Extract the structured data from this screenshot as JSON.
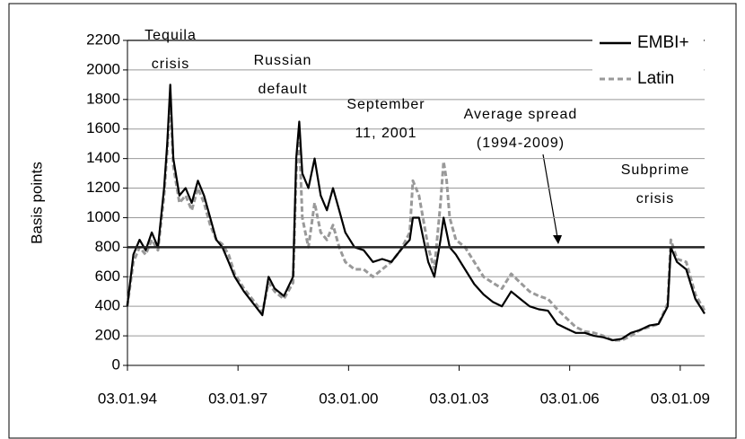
{
  "chart_data": {
    "type": "line",
    "ylabel": "Basis points",
    "ylim": [
      0,
      2200
    ],
    "yticks": [
      0,
      200,
      400,
      600,
      800,
      1000,
      1200,
      1400,
      1600,
      1800,
      2000,
      2200
    ],
    "xlim": [
      "1994-01-03",
      "2009-09"
    ],
    "xticks": [
      {
        "value": "1994-01-03",
        "label": "03.01.94"
      },
      {
        "value": "1997-01-03",
        "label": "03.01.97"
      },
      {
        "value": "2000-01-03",
        "label": "03.01.00"
      },
      {
        "value": "2003-01-03",
        "label": "03.01.03"
      },
      {
        "value": "2006-01-03",
        "label": "03.01.06"
      },
      {
        "value": "2009-01-03",
        "label": "03.01.09"
      }
    ],
    "grid": true,
    "legend": "upper right",
    "reference_line": 800,
    "annotations": [
      {
        "lines": [
          "Tequila",
          "crisis"
        ]
      },
      {
        "lines": [
          "Russian",
          "default"
        ]
      },
      {
        "lines": [
          "September",
          "11, 2001"
        ]
      },
      {
        "lines": [
          "Average spread",
          "(1994-2009)"
        ]
      },
      {
        "lines": [
          "Subprime",
          "crisis"
        ]
      }
    ],
    "x": [
      "1994-01",
      "1994-03",
      "1994-05",
      "1994-07",
      "1994-09",
      "1994-11",
      "1995-01",
      "1995-02",
      "1995-03",
      "1995-04",
      "1995-06",
      "1995-08",
      "1995-10",
      "1995-12",
      "1996-02",
      "1996-04",
      "1996-06",
      "1996-08",
      "1996-10",
      "1996-12",
      "1997-03",
      "1997-06",
      "1997-09",
      "1997-11",
      "1998-01",
      "1998-04",
      "1998-07",
      "1998-08",
      "1998-09",
      "1998-10",
      "1998-12",
      "1999-02",
      "1999-04",
      "1999-06",
      "1999-08",
      "1999-10",
      "1999-12",
      "2000-03",
      "2000-06",
      "2000-09",
      "2000-12",
      "2001-03",
      "2001-06",
      "2001-09",
      "2001-10",
      "2001-12",
      "2002-03",
      "2002-05",
      "2002-07",
      "2002-08",
      "2002-09",
      "2002-10",
      "2002-12",
      "2003-03",
      "2003-06",
      "2003-09",
      "2003-12",
      "2004-03",
      "2004-06",
      "2004-09",
      "2004-12",
      "2005-03",
      "2005-06",
      "2005-09",
      "2005-12",
      "2006-03",
      "2006-06",
      "2006-09",
      "2006-12",
      "2007-03",
      "2007-06",
      "2007-09",
      "2007-12",
      "2008-03",
      "2008-06",
      "2008-09",
      "2008-10",
      "2008-12",
      "2009-03",
      "2009-06",
      "2009-09"
    ],
    "series": [
      {
        "name": "EMBI+",
        "color": "#000000",
        "dashed": false,
        "values": [
          400,
          750,
          850,
          780,
          900,
          800,
          1200,
          1500,
          1900,
          1400,
          1150,
          1200,
          1100,
          1250,
          1150,
          1000,
          850,
          800,
          700,
          600,
          500,
          420,
          340,
          600,
          520,
          470,
          600,
          1400,
          1650,
          1300,
          1200,
          1400,
          1150,
          1050,
          1200,
          1050,
          900,
          800,
          780,
          700,
          720,
          700,
          780,
          850,
          1000,
          1000,
          700,
          600,
          850,
          1000,
          900,
          800,
          750,
          650,
          550,
          480,
          430,
          400,
          500,
          450,
          400,
          380,
          370,
          280,
          250,
          220,
          220,
          200,
          190,
          170,
          180,
          220,
          240,
          270,
          280,
          400,
          800,
          700,
          650,
          450,
          350
        ]
      },
      {
        "name": "Latin",
        "color": "#999999",
        "dashed": true,
        "values": [
          400,
          700,
          800,
          750,
          850,
          780,
          1150,
          1450,
          1800,
          1350,
          1100,
          1150,
          1050,
          1200,
          1100,
          950,
          850,
          820,
          750,
          620,
          520,
          440,
          360,
          560,
          500,
          450,
          560,
          1300,
          1550,
          1000,
          800,
          1100,
          900,
          850,
          950,
          800,
          700,
          650,
          650,
          600,
          650,
          700,
          780,
          900,
          1250,
          1150,
          800,
          650,
          1100,
          1380,
          1250,
          1000,
          850,
          800,
          700,
          600,
          560,
          520,
          620,
          560,
          500,
          470,
          450,
          380,
          320,
          260,
          230,
          220,
          200,
          170,
          170,
          200,
          240,
          260,
          280,
          420,
          850,
          720,
          700,
          480,
          370
        ]
      }
    ]
  }
}
